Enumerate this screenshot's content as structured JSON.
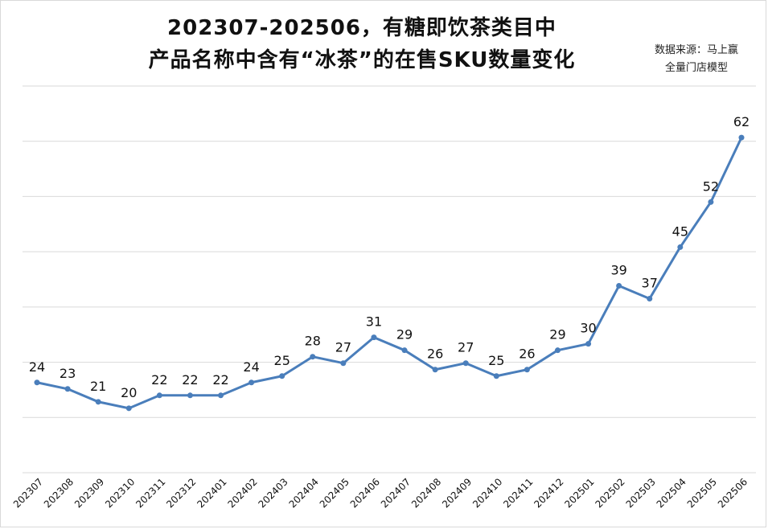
{
  "chart_data": {
    "type": "line",
    "title_line1": "202307-202506，有糖即饮茶类目中",
    "title_line2": "产品名称中含有“冰茶”的在售SKU数量变化",
    "source_line1": "数据来源：马上赢",
    "source_line2": "全量门店模型",
    "categories": [
      "202307",
      "202308",
      "202309",
      "202310",
      "202311",
      "202312",
      "202401",
      "202402",
      "202403",
      "202404",
      "202405",
      "202406",
      "202407",
      "202408",
      "202409",
      "202410",
      "202411",
      "202412",
      "202501",
      "202502",
      "202503",
      "202504",
      "202505",
      "202506"
    ],
    "values": [
      24,
      23,
      21,
      20,
      22,
      22,
      22,
      24,
      25,
      28,
      27,
      31,
      29,
      26,
      27,
      25,
      26,
      29,
      30,
      39,
      37,
      45,
      52,
      62
    ],
    "ylim": [
      10,
      70
    ],
    "grid": true,
    "y_tick_labels_shown": false,
    "series_color": "#4a7ebb"
  }
}
